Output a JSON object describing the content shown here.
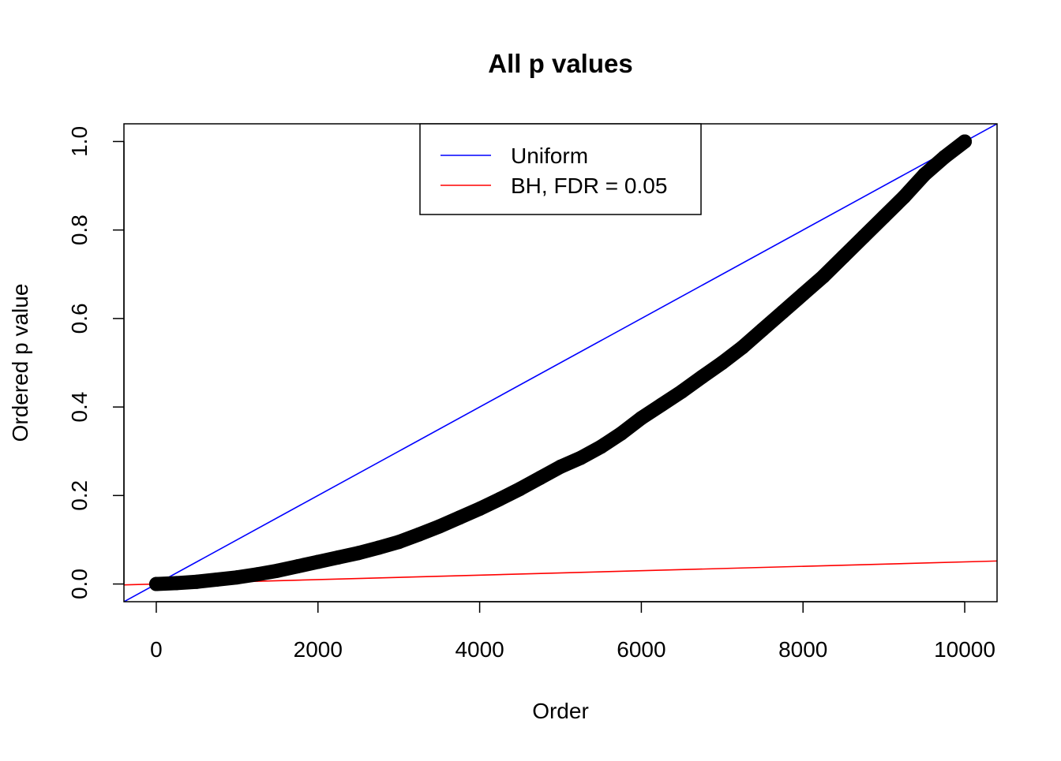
{
  "chart_data": {
    "type": "scatter",
    "title": "All p values",
    "x_label": "Order",
    "y_label": "Ordered p value",
    "series": [
      {
        "name": "Ordered p values",
        "color": "#000000",
        "x": [
          0,
          250,
          500,
          750,
          1000,
          1250,
          1500,
          1750,
          2000,
          2250,
          2500,
          2750,
          3000,
          3250,
          3500,
          3750,
          4000,
          4250,
          4500,
          4750,
          5000,
          5250,
          5500,
          5750,
          6000,
          6250,
          6500,
          6750,
          7000,
          7250,
          7500,
          7750,
          8000,
          8250,
          8500,
          8750,
          9000,
          9250,
          9500,
          9750,
          10000
        ],
        "values": [
          0,
          0.002,
          0.005,
          0.01,
          0.015,
          0.022,
          0.03,
          0.04,
          0.05,
          0.06,
          0.07,
          0.082,
          0.095,
          0.112,
          0.13,
          0.15,
          0.17,
          0.192,
          0.215,
          0.24,
          0.265,
          0.285,
          0.31,
          0.34,
          0.375,
          0.405,
          0.435,
          0.468,
          0.5,
          0.535,
          0.575,
          0.615,
          0.655,
          0.695,
          0.74,
          0.785,
          0.83,
          0.875,
          0.925,
          0.965,
          1.0
        ]
      }
    ],
    "lines": [
      {
        "name": "Uniform",
        "color": "#0000ff",
        "x": [
          0,
          10000
        ],
        "values": [
          0,
          1
        ]
      },
      {
        "name": "BH, FDR = 0.05",
        "color": "#ff0000",
        "x": [
          0,
          10000
        ],
        "values": [
          0,
          0.05
        ]
      }
    ],
    "xlim": [
      -400,
      10400
    ],
    "ylim": [
      -0.04,
      1.04
    ],
    "xticks": [
      0,
      2000,
      4000,
      6000,
      8000,
      10000
    ],
    "yticks": [
      {
        "value": 0,
        "label": "0.0"
      },
      {
        "value": 0.2,
        "label": "0.2"
      },
      {
        "value": 0.4,
        "label": "0.4"
      },
      {
        "value": 0.6,
        "label": "0.6"
      },
      {
        "value": 0.8,
        "label": "0.8"
      },
      {
        "value": 1,
        "label": "1.0"
      }
    ],
    "legend": "top"
  }
}
